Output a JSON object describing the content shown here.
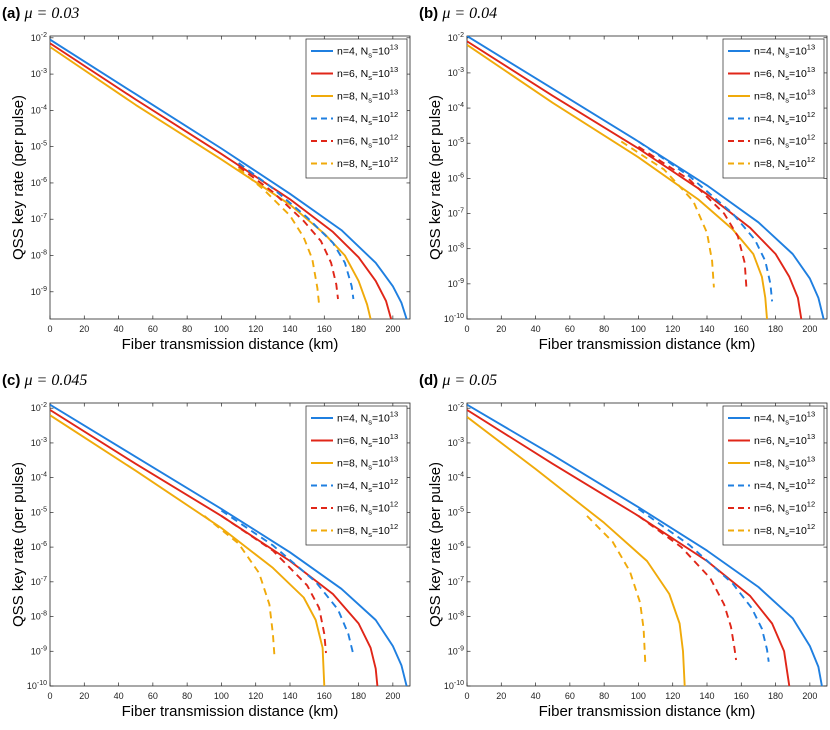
{
  "colors": {
    "n4": "#1f7fe0",
    "n6": "#e02618",
    "n8": "#f0aa0a"
  },
  "chart_data": [
    {
      "type": "line",
      "panel_letter": "(a)",
      "panel_param": "μ = 0.03",
      "xlabel": "Fiber transmission distance (km)",
      "ylabel": "QSS key rate (per pulse)",
      "xlim": [
        0,
        210
      ],
      "ylim_log10": [
        -9.75,
        -1.95
      ],
      "x_ticks": [
        "0",
        "20",
        "40",
        "60",
        "80",
        "100",
        "120",
        "140",
        "160",
        "180",
        "200"
      ],
      "y_ticks": [
        "10-2",
        "10-3",
        "10-4",
        "10-5",
        "10-6",
        "10-7",
        "10-8",
        "10-9"
      ],
      "series": [
        {
          "name": "n=4, Ns=1013",
          "n": "4",
          "ns_exp": "13",
          "color_key": "n4",
          "dash": false,
          "x": [
            0,
            50,
            100,
            140,
            170,
            190,
            200,
            205,
            208
          ],
          "log10y": [
            -2.05,
            -3.55,
            -5.05,
            -6.3,
            -7.3,
            -8.2,
            -8.85,
            -9.3,
            -9.75
          ]
        },
        {
          "name": "n=6, Ns=1013",
          "n": "6",
          "ns_exp": "13",
          "color_key": "n6",
          "dash": false,
          "x": [
            0,
            50,
            100,
            140,
            165,
            180,
            190,
            196,
            199
          ],
          "log10y": [
            -2.15,
            -3.7,
            -5.2,
            -6.45,
            -7.35,
            -8.05,
            -8.7,
            -9.25,
            -9.75
          ]
        },
        {
          "name": "n=8, Ns=1013",
          "n": "8",
          "ns_exp": "13",
          "color_key": "n8",
          "dash": false,
          "x": [
            0,
            50,
            100,
            140,
            160,
            172,
            180,
            185,
            187
          ],
          "log10y": [
            -2.25,
            -3.85,
            -5.35,
            -6.6,
            -7.4,
            -8.0,
            -8.7,
            -9.35,
            -9.75
          ]
        },
        {
          "name": "n=4, Ns=1012",
          "n": "4",
          "ns_exp": "12",
          "color_key": "n4",
          "dash": true,
          "x": [
            110,
            130,
            150,
            165,
            172,
            176,
            177
          ],
          "log10y": [
            -5.45,
            -6.15,
            -6.95,
            -7.65,
            -8.2,
            -8.85,
            -9.2
          ]
        },
        {
          "name": "n=6, Ns=1012",
          "n": "6",
          "ns_exp": "12",
          "color_key": "n6",
          "dash": true,
          "x": [
            110,
            130,
            148,
            158,
            164,
            167,
            168
          ],
          "log10y": [
            -5.55,
            -6.25,
            -7.05,
            -7.6,
            -8.2,
            -8.8,
            -9.2
          ]
        },
        {
          "name": "n=8, Ns=1012",
          "n": "8",
          "ns_exp": "12",
          "color_key": "n8",
          "dash": true,
          "x": [
            110,
            125,
            140,
            148,
            153,
            156,
            157
          ],
          "log10y": [
            -5.6,
            -6.2,
            -6.9,
            -7.5,
            -8.1,
            -8.9,
            -9.35
          ]
        }
      ]
    },
    {
      "type": "line",
      "panel_letter": "(b)",
      "panel_param": "μ = 0.04",
      "xlabel": "Fiber transmission distance (km)",
      "ylabel": "QSS key rate (per pulse)",
      "xlim": [
        0,
        210
      ],
      "ylim_log10": [
        -10,
        -1.95
      ],
      "x_ticks": [
        "0",
        "20",
        "40",
        "60",
        "80",
        "100",
        "120",
        "140",
        "160",
        "180",
        "200"
      ],
      "y_ticks": [
        "10-2",
        "10-3",
        "10-4",
        "10-5",
        "10-6",
        "10-7",
        "10-8",
        "10-9",
        "10-10"
      ],
      "series": [
        {
          "name": "n=4, Ns=1013",
          "n": "4",
          "ns_exp": "13",
          "color_key": "n4",
          "dash": false,
          "x": [
            0,
            50,
            100,
            140,
            170,
            190,
            200,
            205,
            208
          ],
          "log10y": [
            -1.95,
            -3.45,
            -4.95,
            -6.2,
            -7.25,
            -8.15,
            -8.85,
            -9.4,
            -10
          ]
        },
        {
          "name": "n=6, Ns=1013",
          "n": "6",
          "ns_exp": "13",
          "color_key": "n6",
          "dash": false,
          "x": [
            0,
            50,
            100,
            140,
            165,
            180,
            188,
            193,
            195
          ],
          "log10y": [
            -2.1,
            -3.65,
            -5.15,
            -6.45,
            -7.4,
            -8.15,
            -8.8,
            -9.4,
            -10
          ]
        },
        {
          "name": "n=8, Ns=1013",
          "n": "8",
          "ns_exp": "13",
          "color_key": "n8",
          "dash": false,
          "x": [
            0,
            50,
            100,
            135,
            155,
            167,
            172,
            174,
            175
          ],
          "log10y": [
            -2.2,
            -3.85,
            -5.4,
            -6.6,
            -7.45,
            -8.15,
            -8.8,
            -9.4,
            -10
          ]
        },
        {
          "name": "n=4, Ns=1012",
          "n": "4",
          "ns_exp": "12",
          "color_key": "n4",
          "dash": true,
          "x": [
            100,
            130,
            155,
            168,
            174,
            177,
            178
          ],
          "log10y": [
            -4.95,
            -5.95,
            -7.0,
            -7.75,
            -8.35,
            -9.0,
            -9.5
          ]
        },
        {
          "name": "n=6, Ns=1012",
          "n": "6",
          "ns_exp": "12",
          "color_key": "n6",
          "dash": true,
          "x": [
            100,
            130,
            150,
            158,
            162,
            163
          ],
          "log10y": [
            -5.1,
            -6.05,
            -7.0,
            -7.65,
            -8.4,
            -9.1
          ]
        },
        {
          "name": "n=8, Ns=1012",
          "n": "8",
          "ns_exp": "12",
          "color_key": "n8",
          "dash": true,
          "x": [
            90,
            115,
            132,
            140,
            143,
            144
          ],
          "log10y": [
            -4.95,
            -5.75,
            -6.65,
            -7.55,
            -8.35,
            -9.1
          ]
        }
      ]
    },
    {
      "type": "line",
      "panel_letter": "(c)",
      "panel_param": "μ = 0.045",
      "xlabel": "Fiber transmission distance (km)",
      "ylabel": "QSS key rate (per pulse)",
      "xlim": [
        0,
        210
      ],
      "ylim_log10": [
        -10,
        -1.85
      ],
      "x_ticks": [
        "0",
        "20",
        "40",
        "60",
        "80",
        "100",
        "120",
        "140",
        "160",
        "180",
        "200"
      ],
      "y_ticks": [
        "10-2",
        "10-3",
        "10-4",
        "10-5",
        "10-6",
        "10-7",
        "10-8",
        "10-9",
        "10-10"
      ],
      "series": [
        {
          "name": "n=4, Ns=1013",
          "n": "4",
          "ns_exp": "13",
          "color_key": "n4",
          "dash": false,
          "x": [
            0,
            50,
            100,
            140,
            170,
            190,
            200,
            205,
            208
          ],
          "log10y": [
            -1.9,
            -3.4,
            -4.9,
            -6.15,
            -7.2,
            -8.1,
            -8.85,
            -9.4,
            -10
          ]
        },
        {
          "name": "n=6, Ns=1013",
          "n": "6",
          "ns_exp": "13",
          "color_key": "n6",
          "dash": false,
          "x": [
            0,
            50,
            100,
            140,
            165,
            180,
            187,
            190,
            191
          ],
          "log10y": [
            -2.05,
            -3.6,
            -5.1,
            -6.4,
            -7.35,
            -8.2,
            -8.9,
            -9.5,
            -10
          ]
        },
        {
          "name": "n=8, Ns=1013",
          "n": "8",
          "ns_exp": "13",
          "color_key": "n8",
          "dash": false,
          "x": [
            0,
            50,
            100,
            130,
            148,
            155,
            159,
            160
          ],
          "log10y": [
            -2.2,
            -3.8,
            -5.45,
            -6.6,
            -7.45,
            -8.1,
            -8.9,
            -10
          ]
        },
        {
          "name": "n=4, Ns=1012",
          "n": "4",
          "ns_exp": "12",
          "color_key": "n4",
          "dash": true,
          "x": [
            100,
            130,
            155,
            168,
            174,
            177
          ],
          "log10y": [
            -4.95,
            -5.95,
            -7.0,
            -7.8,
            -8.5,
            -9.1
          ]
        },
        {
          "name": "n=6, Ns=1012",
          "n": "6",
          "ns_exp": "12",
          "color_key": "n6",
          "dash": true,
          "x": [
            100,
            130,
            150,
            157,
            160,
            161
          ],
          "log10y": [
            -5.1,
            -6.1,
            -7.1,
            -7.75,
            -8.5,
            -9.05
          ]
        },
        {
          "name": "n=8, Ns=1012",
          "n": "8",
          "ns_exp": "12",
          "color_key": "n8",
          "dash": true,
          "x": [
            90,
            110,
            122,
            128,
            130,
            131
          ],
          "log10y": [
            -5.1,
            -5.9,
            -6.75,
            -7.65,
            -8.5,
            -9.2
          ]
        }
      ]
    },
    {
      "type": "line",
      "panel_letter": "(d)",
      "panel_param": "μ = 0.05",
      "xlabel": "Fiber transmission distance (km)",
      "ylabel": "QSS key rate (per pulse)",
      "xlim": [
        0,
        210
      ],
      "ylim_log10": [
        -10,
        -1.85
      ],
      "x_ticks": [
        "0",
        "20",
        "40",
        "60",
        "80",
        "100",
        "120",
        "140",
        "160",
        "180",
        "200"
      ],
      "y_ticks": [
        "10-2",
        "10-3",
        "10-4",
        "10-5",
        "10-6",
        "10-7",
        "10-8",
        "10-9",
        "10-10"
      ],
      "series": [
        {
          "name": "n=4, Ns=1013",
          "n": "4",
          "ns_exp": "13",
          "color_key": "n4",
          "dash": false,
          "x": [
            0,
            50,
            100,
            140,
            170,
            190,
            200,
            205,
            207
          ],
          "log10y": [
            -1.9,
            -3.35,
            -4.85,
            -6.1,
            -7.15,
            -8.05,
            -8.85,
            -9.45,
            -10
          ]
        },
        {
          "name": "n=6, Ns=1013",
          "n": "6",
          "ns_exp": "13",
          "color_key": "n6",
          "dash": false,
          "x": [
            0,
            50,
            100,
            140,
            165,
            178,
            185,
            188
          ],
          "log10y": [
            -2.05,
            -3.6,
            -5.1,
            -6.4,
            -7.4,
            -8.2,
            -9.0,
            -10
          ]
        },
        {
          "name": "n=8, Ns=1013",
          "n": "8",
          "ns_exp": "13",
          "color_key": "n8",
          "dash": false,
          "x": [
            0,
            40,
            80,
            105,
            118,
            124,
            126,
            127
          ],
          "log10y": [
            -2.25,
            -3.75,
            -5.3,
            -6.4,
            -7.35,
            -8.2,
            -9.0,
            -10
          ]
        },
        {
          "name": "n=4, Ns=1012",
          "n": "4",
          "ns_exp": "12",
          "color_key": "n4",
          "dash": true,
          "x": [
            100,
            130,
            155,
            166,
            172,
            175,
            176
          ],
          "log10y": [
            -4.9,
            -5.95,
            -7.05,
            -7.75,
            -8.35,
            -8.95,
            -9.3
          ]
        },
        {
          "name": "n=6, Ns=1012",
          "n": "6",
          "ns_exp": "12",
          "color_key": "n6",
          "dash": true,
          "x": [
            100,
            125,
            142,
            150,
            154,
            156,
            157
          ],
          "log10y": [
            -5.1,
            -6.0,
            -6.9,
            -7.65,
            -8.3,
            -8.9,
            -9.25
          ]
        },
        {
          "name": "n=8, Ns=1012",
          "n": "8",
          "ns_exp": "12",
          "color_key": "n8",
          "dash": true,
          "x": [
            70,
            85,
            95,
            101,
            103,
            104
          ],
          "log10y": [
            -5.1,
            -5.85,
            -6.7,
            -7.6,
            -8.35,
            -9.35
          ]
        }
      ]
    }
  ]
}
